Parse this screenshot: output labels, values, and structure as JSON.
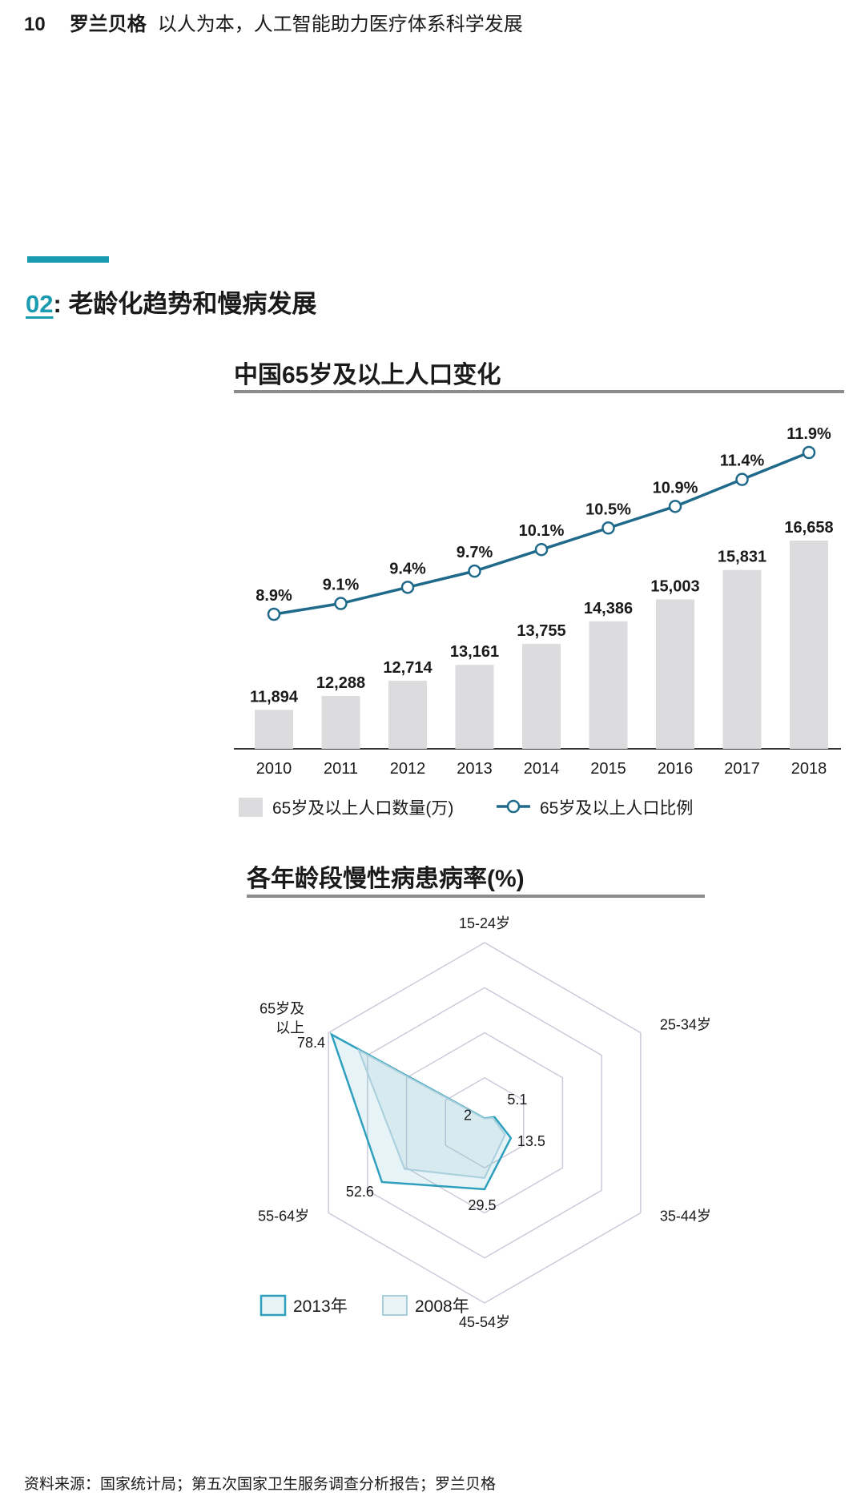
{
  "header": {
    "page_number": "10",
    "brand": "罗兰贝格",
    "subtitle": "以人为本，人工智能助力医疗体系科学发展"
  },
  "section": {
    "number": "02",
    "colon": ":",
    "title": "老龄化趋势和慢病发展"
  },
  "colors": {
    "accent": "#1a9bb0",
    "line": "#1f6a8a",
    "bar": "#dcdcde",
    "radar2013": "#2e9fbd",
    "radar2008": "#a9cfdc"
  },
  "chart_data": [
    {
      "type": "bar",
      "title": "中国65岁及以上人口变化",
      "categories": [
        "2010",
        "2011",
        "2012",
        "2013",
        "2014",
        "2015",
        "2016",
        "2017",
        "2018"
      ],
      "series": [
        {
          "name": "65岁及以上人口数量(万)",
          "type": "bar",
          "values": [
            11894,
            12288,
            12714,
            13161,
            13755,
            14386,
            15003,
            15831,
            16658
          ],
          "labels": [
            "11,894",
            "12,288",
            "12,714",
            "13,161",
            "13,755",
            "14,386",
            "15,003",
            "15,831",
            "16,658"
          ]
        },
        {
          "name": "65岁及以上人口比例",
          "type": "line",
          "values": [
            8.9,
            9.1,
            9.4,
            9.7,
            10.1,
            10.5,
            10.9,
            11.4,
            11.9
          ],
          "labels": [
            "8.9%",
            "9.1%",
            "9.4%",
            "9.7%",
            "10.1%",
            "10.5%",
            "10.9%",
            "11.4%",
            "11.9%"
          ]
        }
      ],
      "legend_position": "bottom-left",
      "grid": false
    },
    {
      "type": "radar",
      "title": "各年龄段慢性病患病率(%)",
      "axes": [
        "15-24岁",
        "25-34岁",
        "35-44岁",
        "45-54岁",
        "55-64岁",
        "65岁及以上"
      ],
      "axis_label_lines": [
        [
          "15-24岁"
        ],
        [
          "25-34岁"
        ],
        [
          "35-44岁"
        ],
        [
          "45-54岁"
        ],
        [
          "55-64岁"
        ],
        [
          "65岁及",
          "以上"
        ]
      ],
      "series": [
        {
          "name": "2013年",
          "values": [
            2.0,
            5.1,
            13.5,
            29.5,
            52.6,
            78.4
          ],
          "labels": [
            "2",
            "5.1",
            "13.5",
            "29.5",
            "52.6",
            "78.4"
          ]
        },
        {
          "name": "2008年",
          "values": [
            1.9,
            4.3,
            10.5,
            24.5,
            41.0,
            64.5
          ]
        }
      ],
      "range": [
        0,
        80
      ],
      "grid_rings": 4,
      "legend_position": "bottom-left"
    }
  ],
  "source": "资料来源：国家统计局；第五次国家卫生服务调查分析报告；罗兰贝格"
}
